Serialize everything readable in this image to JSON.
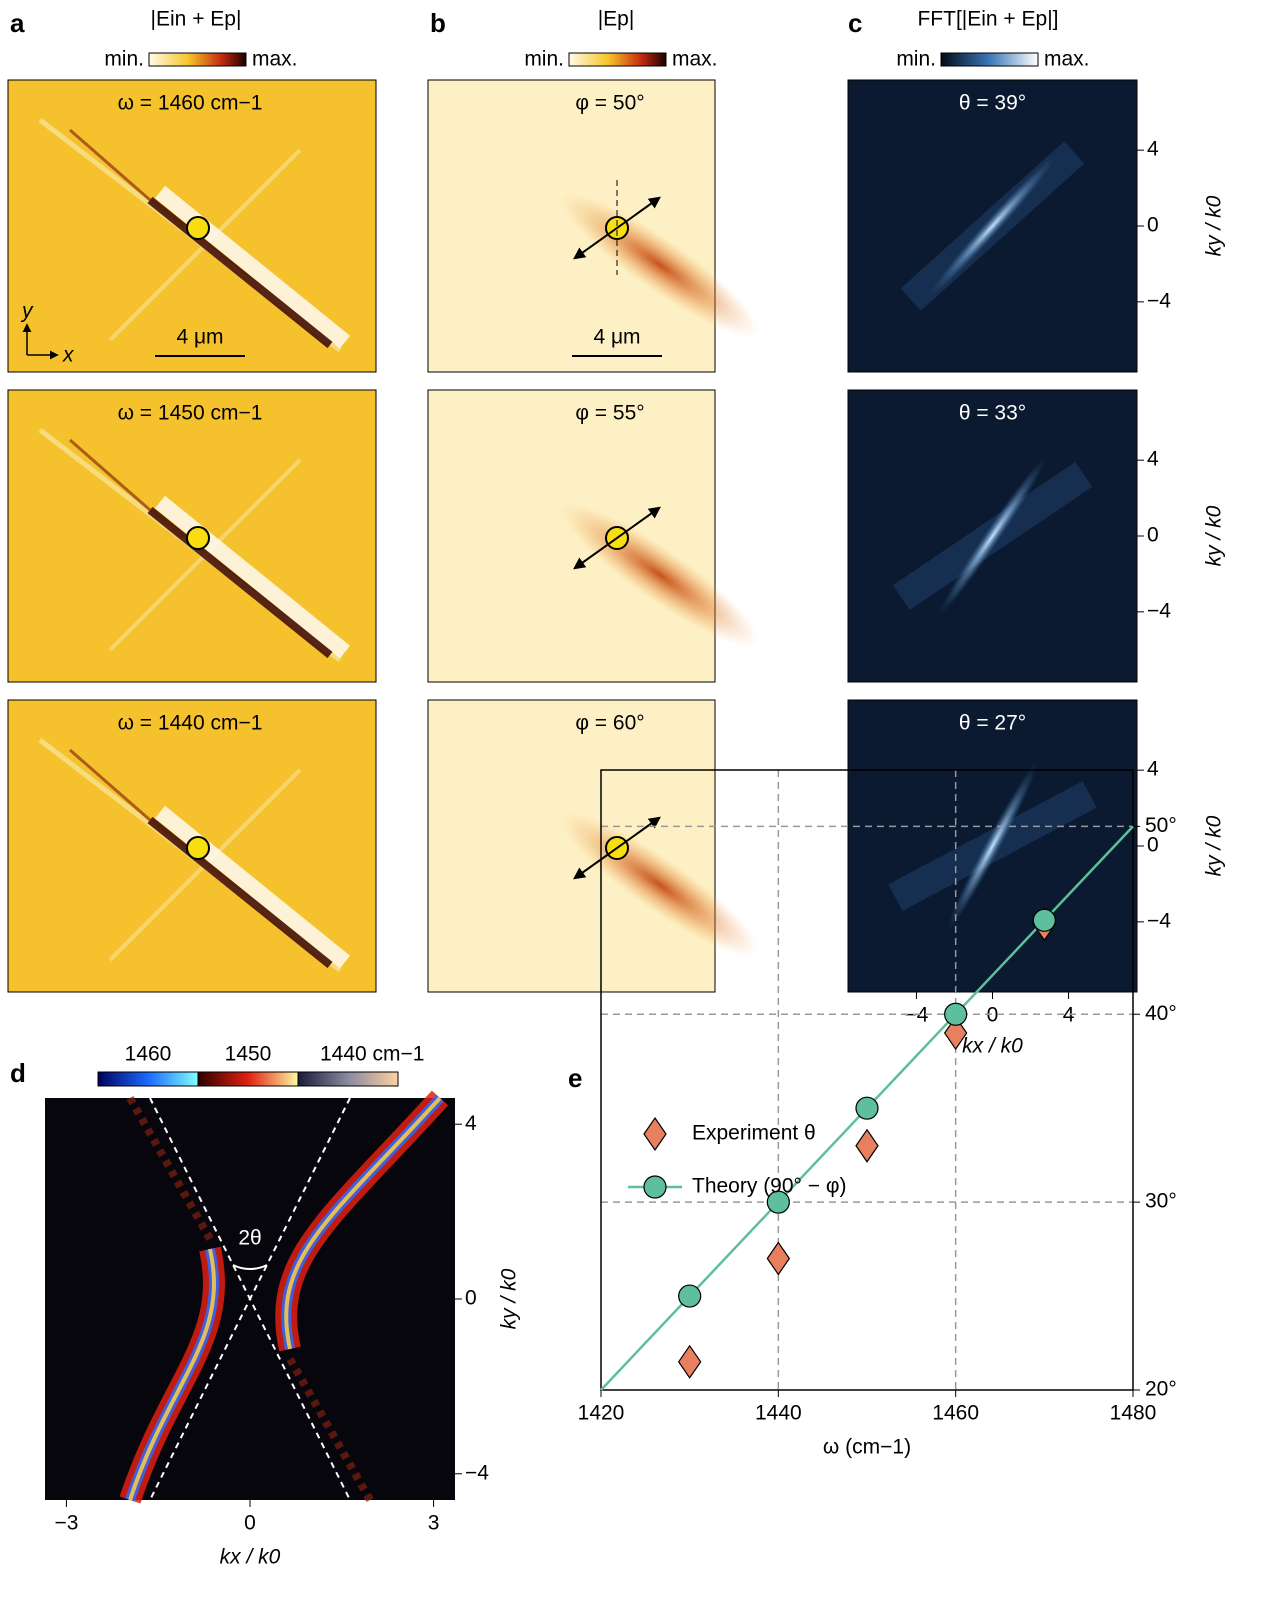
{
  "chart_data": [
    {
      "type": "image",
      "panel": "a",
      "colorbar_title": "|Ein + Ep|",
      "colorbar_min": "min.",
      "colorbar_max": "max.",
      "rows": [
        "ω = 1460 cm−1",
        "ω = 1450 cm−1",
        "ω = 1440 cm−1"
      ],
      "scale_bar": "4 μm",
      "axis_labels": [
        "y",
        "x"
      ]
    },
    {
      "type": "image",
      "panel": "b",
      "colorbar_title": "|Ep|",
      "colorbar_min": "min.",
      "colorbar_max": "max.",
      "rows": [
        "φ = 50°",
        "φ = 55°",
        "φ = 60°"
      ],
      "scale_bar": "4 μm"
    },
    {
      "type": "image",
      "panel": "c",
      "colorbar_title": "FFT[|Ein + Ep|]",
      "colorbar_min": "min.",
      "colorbar_max": "max.",
      "rows": [
        "θ = 39°",
        "θ = 33°",
        "θ = 27°"
      ],
      "xlim": [
        -7.6,
        7.6
      ],
      "ylim": [
        -7.7,
        7.7
      ],
      "xticks": [
        {
          "value": -4,
          "label": "−4"
        },
        0,
        4
      ],
      "yticks": [
        4,
        0,
        {
          "value": -4,
          "label": "−4"
        }
      ],
      "xlabel": "kx / k0",
      "ylabel": "ky / k0"
    },
    {
      "type": "image",
      "panel": "d",
      "colorbar_labels": [
        "1460",
        "1450",
        "1440 cm−1"
      ],
      "annotation": "2θ",
      "xlim": [
        -3.35,
        3.35
      ],
      "ylim": [
        -4.6,
        4.6
      ],
      "xticks": [
        {
          "value": -3,
          "label": "−3"
        },
        0,
        3
      ],
      "yticks": [
        4,
        0,
        {
          "value": -4,
          "label": "−4"
        }
      ],
      "xlabel": "kx / k0",
      "ylabel": "ky / k0"
    },
    {
      "type": "scatter",
      "panel": "e",
      "x": [
        1430,
        1440,
        1450,
        1460,
        1470
      ],
      "series": [
        {
          "name": "Experiment θ",
          "color": "#e8805f",
          "marker": "diamond",
          "values": [
            21.5,
            27,
            33,
            39,
            44.8
          ]
        },
        {
          "name": "Theory (90° − φ)",
          "color": "#5dbf9c",
          "marker": "circle",
          "values": [
            25,
            30,
            35,
            40,
            45
          ],
          "line_x": [
            1420,
            1480
          ],
          "line_values": [
            20,
            50
          ]
        }
      ],
      "xlim": [
        1420,
        1480
      ],
      "ylim": [
        20,
        53
      ],
      "xticks": [
        1420,
        1440,
        1460,
        1480
      ],
      "yticks": [
        {
          "value": 20,
          "label": "20°"
        },
        {
          "value": 30,
          "label": "30°"
        },
        {
          "value": 40,
          "label": "40°"
        },
        {
          "value": 50,
          "label": "50°"
        }
      ],
      "xlabel": "ω (cm−1)",
      "grid": true
    }
  ]
}
